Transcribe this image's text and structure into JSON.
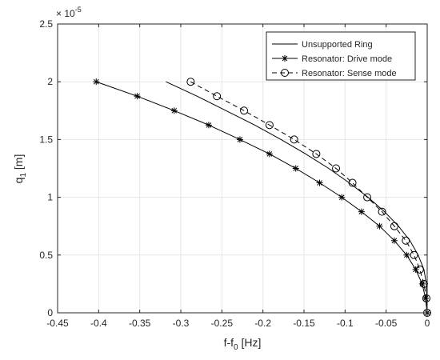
{
  "chart_data": {
    "type": "line",
    "title": "",
    "xlabel": "f-f",
    "xlabel_sub": "0",
    "xlabel_unit": " [Hz]",
    "ylabel": "q",
    "ylabel_sub": "1",
    "ylabel_unit": " [m]",
    "y_multiplier_base": "× 10",
    "y_multiplier_exp": "-5",
    "xlim": [
      -0.45,
      0
    ],
    "ylim": [
      0,
      2.5
    ],
    "xticks": [
      -0.45,
      -0.4,
      -0.35,
      -0.3,
      -0.25,
      -0.2,
      -0.15,
      -0.1,
      -0.05,
      0
    ],
    "xtick_labels": [
      "-0.45",
      "-0.4",
      "-0.35",
      "-0.3",
      "-0.25",
      "-0.2",
      "-0.15",
      "-0.1",
      "-0.05",
      "0"
    ],
    "yticks": [
      0,
      0.5,
      1,
      1.5,
      2,
      2.5
    ],
    "ytick_labels": [
      "0",
      "0.5",
      "1",
      "1.5",
      "2",
      "2.5"
    ],
    "grid": true,
    "legend_position": "top-right",
    "series": [
      {
        "name": "Unsupported Ring",
        "color": "#000000",
        "line_style": "solid",
        "marker": "none",
        "x": [
          -0.318,
          -0.28,
          -0.245,
          -0.21,
          -0.178,
          -0.148,
          -0.12,
          -0.095,
          -0.072,
          -0.052,
          -0.035,
          -0.021,
          -0.011,
          -0.004,
          -0.001,
          0
        ],
        "y": [
          2.0,
          1.875,
          1.75,
          1.625,
          1.5,
          1.375,
          1.25,
          1.125,
          1.0,
          0.875,
          0.75,
          0.625,
          0.5,
          0.375,
          0.25,
          0
        ]
      },
      {
        "name": "Resonator: Drive mode",
        "color": "#000000",
        "line_style": "solid",
        "marker": "asterisk",
        "x": [
          -0.403,
          -0.353,
          -0.308,
          -0.266,
          -0.228,
          -0.192,
          -0.16,
          -0.131,
          -0.104,
          -0.08,
          -0.058,
          -0.04,
          -0.025,
          -0.014,
          -0.006,
          -0.002,
          0
        ],
        "y": [
          2.0,
          1.875,
          1.75,
          1.625,
          1.5,
          1.375,
          1.25,
          1.125,
          1.0,
          0.875,
          0.75,
          0.625,
          0.5,
          0.375,
          0.25,
          0.125,
          0
        ]
      },
      {
        "name": "Resonator: Sense mode",
        "color": "#000000",
        "line_style": "dashed",
        "marker": "circle",
        "x": [
          -0.288,
          -0.256,
          -0.223,
          -0.192,
          -0.162,
          -0.135,
          -0.111,
          -0.091,
          -0.073,
          -0.055,
          -0.04,
          -0.026,
          -0.016,
          -0.009,
          -0.004,
          -0.001,
          0
        ],
        "y": [
          2.0,
          1.875,
          1.75,
          1.625,
          1.5,
          1.375,
          1.25,
          1.125,
          1.0,
          0.875,
          0.75,
          0.625,
          0.5,
          0.375,
          0.25,
          0.125,
          0
        ]
      }
    ]
  }
}
